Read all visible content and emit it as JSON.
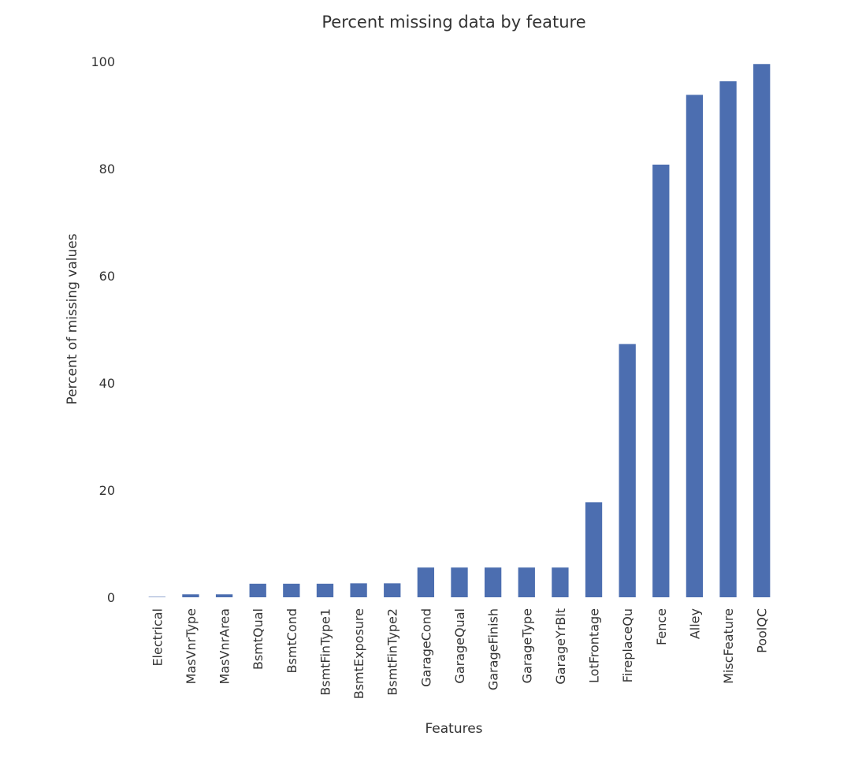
{
  "chart_data": {
    "type": "bar",
    "title": "Percent missing data by feature",
    "xlabel": "Features",
    "ylabel": "Percent of missing values",
    "ylim": [
      0,
      100
    ],
    "yticks": [
      0,
      20,
      40,
      60,
      80,
      100
    ],
    "grid": false,
    "bar_color": "#4c6eb0",
    "categories": [
      "Electrical",
      "MasVnrType",
      "MasVnrArea",
      "BsmtQual",
      "BsmtCond",
      "BsmtFinType1",
      "BsmtExposure",
      "BsmtFinType2",
      "GarageCond",
      "GarageQual",
      "GarageFinish",
      "GarageType",
      "GarageYrBlt",
      "LotFrontage",
      "FireplaceQu",
      "Fence",
      "Alley",
      "MiscFeature",
      "PoolQC"
    ],
    "values": [
      0.07,
      0.55,
      0.55,
      2.53,
      2.53,
      2.53,
      2.6,
      2.6,
      5.55,
      5.55,
      5.55,
      5.55,
      5.55,
      17.74,
      47.26,
      80.75,
      93.77,
      96.3,
      99.52
    ]
  }
}
